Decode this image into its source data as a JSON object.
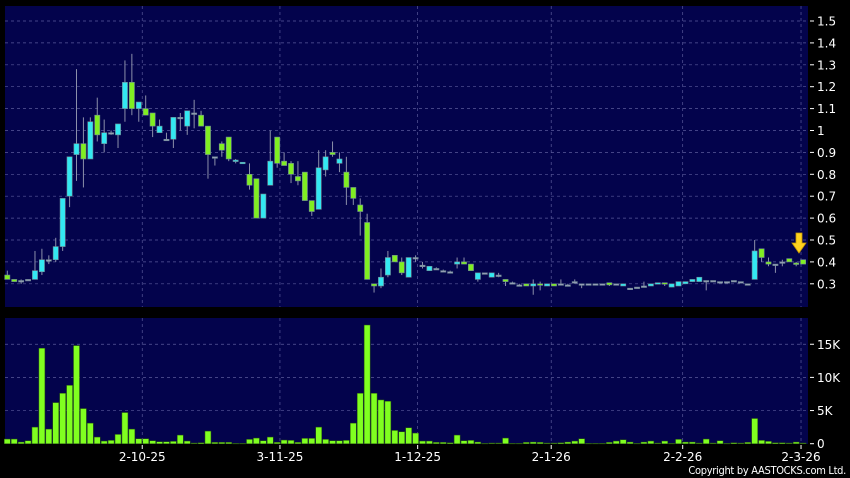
{
  "copyright": "Copyright by AASTOCKS.com Ltd.",
  "colors": {
    "background": "#000000",
    "plot_bg": "#03034c",
    "grid": "#5a5a9a",
    "up": "#33e8f2",
    "down": "#80ee22",
    "flat": "#9aa0b8",
    "wick": "#8c90aa",
    "volume": "#80ff20",
    "marker": "#ffd21f"
  },
  "chart_data": [
    {
      "type": "candlestick",
      "panel": "price",
      "yaxis_side": "right",
      "ylim": [
        0.25,
        1.55
      ],
      "yticks": [
        "1.5",
        "1.4",
        "1.3",
        "1.2",
        "1.1",
        "1",
        "0.9",
        "0.8",
        "0.7",
        "0.6",
        "0.5",
        "0.4",
        "0.3"
      ],
      "grid": true,
      "last_bar_marker": "down-arrow",
      "ohlc": [
        [
          0.34,
          0.36,
          0.32,
          0.32
        ],
        [
          0.32,
          0.32,
          0.31,
          0.31
        ],
        [
          0.315,
          0.32,
          0.3,
          0.315
        ],
        [
          0.32,
          0.32,
          0.315,
          0.32
        ],
        [
          0.32,
          0.45,
          0.32,
          0.36
        ],
        [
          0.355,
          0.46,
          0.34,
          0.41
        ],
        [
          0.41,
          0.43,
          0.39,
          0.41
        ],
        [
          0.41,
          0.51,
          0.4,
          0.47
        ],
        [
          0.47,
          0.69,
          0.45,
          0.69
        ],
        [
          0.7,
          0.88,
          0.65,
          0.88
        ],
        [
          0.89,
          1.28,
          0.77,
          0.94
        ],
        [
          0.94,
          1.06,
          0.74,
          0.87
        ],
        [
          0.87,
          1.06,
          0.87,
          1.04
        ],
        [
          1.07,
          1.15,
          0.95,
          0.98
        ],
        [
          0.94,
          1.05,
          0.9,
          0.99
        ],
        [
          0.99,
          1.0,
          0.98,
          0.99
        ],
        [
          0.98,
          1.03,
          0.92,
          1.03
        ],
        [
          1.1,
          1.32,
          1.04,
          1.22
        ],
        [
          1.22,
          1.35,
          1.07,
          1.1
        ],
        [
          1.1,
          1.13,
          1.04,
          1.13
        ],
        [
          1.1,
          1.16,
          1.07,
          1.07
        ],
        [
          1.08,
          1.08,
          0.97,
          1.02
        ],
        [
          0.99,
          1.05,
          0.99,
          1.02
        ],
        [
          0.96,
          0.99,
          0.96,
          0.96
        ],
        [
          0.96,
          1.06,
          0.92,
          1.06
        ],
        [
          1.06,
          1.08,
          1.0,
          1.06
        ],
        [
          1.02,
          1.09,
          0.98,
          1.09
        ],
        [
          1.08,
          1.14,
          1.01,
          1.08
        ],
        [
          1.07,
          1.09,
          1.02,
          1.02
        ],
        [
          1.02,
          1.02,
          0.78,
          0.89
        ],
        [
          0.88,
          0.88,
          0.84,
          0.88
        ],
        [
          0.94,
          0.95,
          0.88,
          0.91
        ],
        [
          0.97,
          0.97,
          0.86,
          0.87
        ],
        [
          0.86,
          0.87,
          0.85,
          0.865
        ],
        [
          0.85,
          0.855,
          0.85,
          0.855
        ],
        [
          0.8,
          0.85,
          0.73,
          0.75
        ],
        [
          0.78,
          0.78,
          0.6,
          0.6
        ],
        [
          0.6,
          0.71,
          0.6,
          0.71
        ],
        [
          0.75,
          1.0,
          0.75,
          0.86
        ],
        [
          0.97,
          0.97,
          0.83,
          0.85
        ],
        [
          0.86,
          0.9,
          0.84,
          0.84
        ],
        [
          0.85,
          0.86,
          0.76,
          0.8
        ],
        [
          0.79,
          0.86,
          0.75,
          0.77
        ],
        [
          0.81,
          0.81,
          0.68,
          0.68
        ],
        [
          0.68,
          0.68,
          0.61,
          0.63
        ],
        [
          0.64,
          0.91,
          0.64,
          0.83
        ],
        [
          0.82,
          0.91,
          0.79,
          0.88
        ],
        [
          0.9,
          0.95,
          0.88,
          0.89
        ],
        [
          0.85,
          0.9,
          0.81,
          0.87
        ],
        [
          0.81,
          0.88,
          0.66,
          0.74
        ],
        [
          0.74,
          0.74,
          0.66,
          0.69
        ],
        [
          0.66,
          0.69,
          0.52,
          0.63
        ],
        [
          0.58,
          0.62,
          0.32,
          0.32
        ],
        [
          0.3,
          0.3,
          0.26,
          0.29
        ],
        [
          0.29,
          0.37,
          0.28,
          0.33
        ],
        [
          0.34,
          0.45,
          0.33,
          0.42
        ],
        [
          0.43,
          0.43,
          0.4,
          0.4
        ],
        [
          0.4,
          0.42,
          0.34,
          0.35
        ],
        [
          0.33,
          0.42,
          0.33,
          0.42
        ],
        [
          0.42,
          0.43,
          0.4,
          0.42
        ],
        [
          0.385,
          0.4,
          0.37,
          0.385
        ],
        [
          0.36,
          0.38,
          0.36,
          0.38
        ],
        [
          0.37,
          0.375,
          0.37,
          0.37
        ],
        [
          0.36,
          0.365,
          0.36,
          0.36
        ],
        [
          0.355,
          0.36,
          0.355,
          0.355
        ],
        [
          0.39,
          0.42,
          0.37,
          0.4
        ],
        [
          0.4,
          0.42,
          0.39,
          0.39
        ],
        [
          0.39,
          0.39,
          0.36,
          0.36
        ],
        [
          0.32,
          0.35,
          0.31,
          0.35
        ],
        [
          0.35,
          0.35,
          0.35,
          0.35
        ],
        [
          0.33,
          0.35,
          0.33,
          0.35
        ],
        [
          0.34,
          0.35,
          0.33,
          0.34
        ],
        [
          0.32,
          0.32,
          0.29,
          0.31
        ],
        [
          0.305,
          0.31,
          0.3,
          0.305
        ],
        [
          0.295,
          0.3,
          0.29,
          0.295
        ],
        [
          0.3,
          0.3,
          0.29,
          0.29
        ],
        [
          0.29,
          0.32,
          0.25,
          0.3
        ],
        [
          0.3,
          0.31,
          0.27,
          0.295
        ],
        [
          0.29,
          0.3,
          0.29,
          0.3
        ],
        [
          0.3,
          0.3,
          0.29,
          0.29
        ],
        [
          0.3,
          0.32,
          0.3,
          0.3
        ],
        [
          0.295,
          0.3,
          0.29,
          0.295
        ],
        [
          0.31,
          0.32,
          0.3,
          0.31
        ],
        [
          0.3,
          0.3,
          0.28,
          0.3
        ],
        [
          0.3,
          0.3,
          0.3,
          0.3
        ],
        [
          0.3,
          0.3,
          0.3,
          0.3
        ],
        [
          0.3,
          0.3,
          0.3,
          0.3
        ],
        [
          0.305,
          0.305,
          0.29,
          0.295
        ],
        [
          0.3,
          0.3,
          0.3,
          0.3
        ],
        [
          0.29,
          0.3,
          0.29,
          0.3
        ],
        [
          0.28,
          0.28,
          0.28,
          0.28
        ],
        [
          0.285,
          0.285,
          0.285,
          0.285
        ],
        [
          0.29,
          0.31,
          0.29,
          0.29
        ],
        [
          0.29,
          0.3,
          0.29,
          0.3
        ],
        [
          0.3,
          0.305,
          0.3,
          0.305
        ],
        [
          0.305,
          0.305,
          0.29,
          0.3
        ],
        [
          0.285,
          0.3,
          0.285,
          0.3
        ],
        [
          0.29,
          0.31,
          0.29,
          0.31
        ],
        [
          0.3,
          0.31,
          0.3,
          0.31
        ],
        [
          0.31,
          0.32,
          0.31,
          0.32
        ],
        [
          0.31,
          0.33,
          0.31,
          0.33
        ],
        [
          0.315,
          0.315,
          0.27,
          0.315
        ],
        [
          0.315,
          0.315,
          0.315,
          0.315
        ],
        [
          0.31,
          0.31,
          0.31,
          0.31
        ],
        [
          0.31,
          0.31,
          0.31,
          0.31
        ],
        [
          0.315,
          0.315,
          0.315,
          0.315
        ],
        [
          0.31,
          0.31,
          0.31,
          0.31
        ],
        [
          0.3,
          0.3,
          0.295,
          0.3
        ],
        [
          0.32,
          0.5,
          0.32,
          0.45
        ],
        [
          0.46,
          0.46,
          0.4,
          0.42
        ],
        [
          0.4,
          0.42,
          0.38,
          0.39
        ],
        [
          0.39,
          0.39,
          0.35,
          0.39
        ],
        [
          0.4,
          0.41,
          0.38,
          0.4
        ],
        [
          0.415,
          0.415,
          0.4,
          0.4
        ],
        [
          0.395,
          0.4,
          0.38,
          0.39
        ],
        [
          0.41,
          0.41,
          0.39,
          0.39
        ]
      ]
    },
    {
      "type": "bar",
      "panel": "volume",
      "yaxis_side": "right",
      "ylim": [
        0,
        19
      ],
      "yticks": [
        "15K",
        "10K",
        "5K",
        "0"
      ],
      "ytick_values": [
        15,
        10,
        5,
        0
      ],
      "grid": true,
      "values_k": [
        0.7,
        0.7,
        0.25,
        0.45,
        2.5,
        14.4,
        2.2,
        6.2,
        7.6,
        8.8,
        14.8,
        5.3,
        3.1,
        1.0,
        0.4,
        0.5,
        1.4,
        4.7,
        2.2,
        0.75,
        0.75,
        0.45,
        0.3,
        0.3,
        0.35,
        1.3,
        0.4,
        0.1,
        0.15,
        1.9,
        0.2,
        0.2,
        0.2,
        0.05,
        0.05,
        0.65,
        0.85,
        0.45,
        1.0,
        0.2,
        0.55,
        0.5,
        0.2,
        0.8,
        0.8,
        2.5,
        0.65,
        0.45,
        0.45,
        0.5,
        3.1,
        7.6,
        17.9,
        7.6,
        6.6,
        6.4,
        2.0,
        1.8,
        2.4,
        1.6,
        0.4,
        0.4,
        0.2,
        0.2,
        0.15,
        1.3,
        0.45,
        0.5,
        0.25,
        0.05,
        0.1,
        0.1,
        0.85,
        0.05,
        0.05,
        0.2,
        0.25,
        0.2,
        0.1,
        0.1,
        0.15,
        0.25,
        0.4,
        0.75,
        0.05,
        0.05,
        0.05,
        0.2,
        0.4,
        0.6,
        0.25,
        0.05,
        0.25,
        0.4,
        0.1,
        0.4,
        0.05,
        0.65,
        0.25,
        0.25,
        0.1,
        0.7,
        0.1,
        0.45,
        0.05,
        0.15,
        0.1,
        0.2,
        3.8,
        0.5,
        0.35,
        0.15,
        0.15,
        0.1,
        0.25,
        0.1
      ],
      "xticks": [
        "2-10-25",
        "3-11-25",
        "1-12-25",
        "2-1-26",
        "2-2-26",
        "2-3-26"
      ]
    }
  ]
}
